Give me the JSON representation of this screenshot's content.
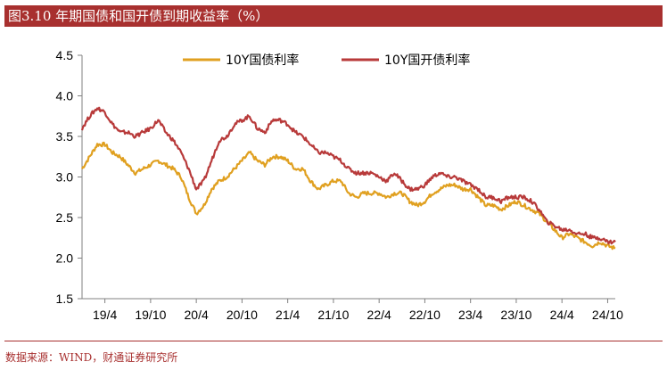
{
  "header": {
    "title": "图3.10 年期国债和国开债到期收益率（%）"
  },
  "footer": {
    "source": "数据来源：WIND，财通证券研究所"
  },
  "chart_data": {
    "type": "line",
    "title": "图3.10 年期国债和国开债到期收益率（%）",
    "xlabel": "",
    "ylabel": "",
    "ylim": [
      1.5,
      4.5
    ],
    "yticks": [
      "1.5",
      "2.0",
      "2.5",
      "3.0",
      "3.5",
      "4.0",
      "4.5"
    ],
    "xticks": [
      "19/4",
      "19/10",
      "20/4",
      "20/10",
      "21/4",
      "21/10",
      "22/4",
      "22/10",
      "23/4",
      "23/10",
      "24/4",
      "24/10"
    ],
    "legend": "top-center",
    "x": [
      "19/1",
      "19/2",
      "19/3",
      "19/4",
      "19/5",
      "19/6",
      "19/7",
      "19/8",
      "19/9",
      "19/10",
      "19/11",
      "19/12",
      "20/1",
      "20/2",
      "20/3",
      "20/4",
      "20/5",
      "20/6",
      "20/7",
      "20/8",
      "20/9",
      "20/10",
      "20/11",
      "20/12",
      "21/1",
      "21/2",
      "21/3",
      "21/4",
      "21/5",
      "21/6",
      "21/7",
      "21/8",
      "21/9",
      "21/10",
      "21/11",
      "21/12",
      "22/1",
      "22/2",
      "22/3",
      "22/4",
      "22/5",
      "22/6",
      "22/7",
      "22/8",
      "22/9",
      "22/10",
      "22/11",
      "22/12",
      "23/1",
      "23/2",
      "23/3",
      "23/4",
      "23/5",
      "23/6",
      "23/7",
      "23/8",
      "23/9",
      "23/10",
      "23/11",
      "23/12",
      "24/1",
      "24/2",
      "24/3",
      "24/4",
      "24/5",
      "24/6",
      "24/7",
      "24/8",
      "24/9",
      "24/10",
      "24/11"
    ],
    "series": [
      {
        "name": "10Y国债利率",
        "color": "#e0a020",
        "values": [
          3.1,
          3.25,
          3.4,
          3.4,
          3.3,
          3.25,
          3.15,
          3.05,
          3.1,
          3.15,
          3.2,
          3.15,
          3.1,
          3.0,
          2.75,
          2.55,
          2.65,
          2.85,
          2.95,
          3.0,
          3.1,
          3.2,
          3.3,
          3.2,
          3.15,
          3.25,
          3.25,
          3.2,
          3.1,
          3.1,
          2.95,
          2.85,
          2.9,
          2.95,
          2.95,
          2.8,
          2.75,
          2.8,
          2.8,
          2.8,
          2.75,
          2.8,
          2.8,
          2.7,
          2.65,
          2.7,
          2.8,
          2.85,
          2.9,
          2.9,
          2.85,
          2.85,
          2.75,
          2.65,
          2.65,
          2.6,
          2.65,
          2.7,
          2.65,
          2.6,
          2.55,
          2.45,
          2.35,
          2.25,
          2.3,
          2.25,
          2.2,
          2.15,
          2.2,
          2.15,
          2.12
        ]
      },
      {
        "name": "10Y国开债利率",
        "color": "#b83a3a",
        "values": [
          3.6,
          3.75,
          3.85,
          3.8,
          3.65,
          3.55,
          3.55,
          3.5,
          3.55,
          3.6,
          3.7,
          3.55,
          3.45,
          3.3,
          3.1,
          2.85,
          2.95,
          3.2,
          3.45,
          3.5,
          3.65,
          3.7,
          3.75,
          3.6,
          3.55,
          3.7,
          3.7,
          3.65,
          3.55,
          3.5,
          3.4,
          3.3,
          3.3,
          3.25,
          3.2,
          3.1,
          3.05,
          3.05,
          3.05,
          3.0,
          2.95,
          3.05,
          2.95,
          2.85,
          2.85,
          2.9,
          3.0,
          3.05,
          3.0,
          3.0,
          2.95,
          2.9,
          2.85,
          2.75,
          2.75,
          2.7,
          2.75,
          2.75,
          2.75,
          2.7,
          2.6,
          2.45,
          2.4,
          2.35,
          2.35,
          2.3,
          2.3,
          2.25,
          2.25,
          2.2,
          2.2
        ]
      }
    ]
  }
}
